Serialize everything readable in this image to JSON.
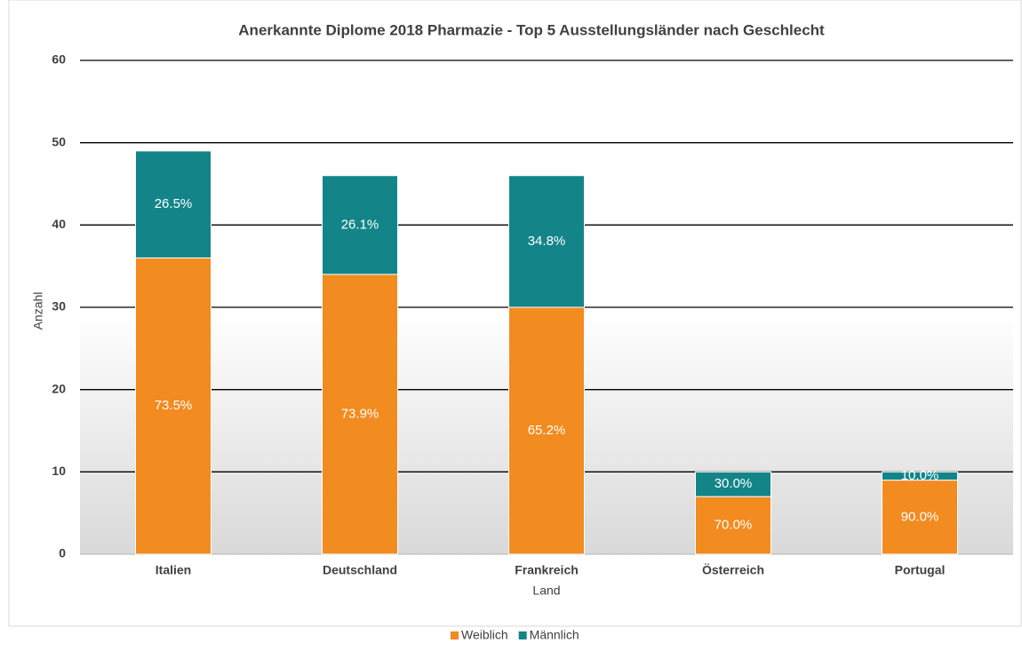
{
  "chart_data": {
    "type": "stacked_bar",
    "title": "Anerkannte Diplome 2018 Pharmazie - Top 5 Ausstellungsländer nach Geschlecht",
    "x_label": "Land",
    "y_label": "Anzahl",
    "categories": [
      "Italien",
      "Deutschland",
      "Frankreich",
      "Österreich",
      "Portugal"
    ],
    "series": [
      {
        "name": "Weiblich",
        "color": "#f28b20",
        "values": [
          36,
          34,
          30,
          7,
          9
        ],
        "value_labels": [
          "73.5%",
          "73.9%",
          "65.2%",
          "70.0%",
          "90.0%"
        ]
      },
      {
        "name": "Männlich",
        "color": "#138589",
        "values": [
          13,
          12,
          16,
          3,
          1
        ],
        "value_labels": [
          "26.5%",
          "26.1%",
          "34.8%",
          "30.0%",
          "10.0%"
        ]
      }
    ],
    "ylim": [
      0,
      60
    ],
    "yticks": [
      0,
      10,
      20,
      30,
      40,
      50,
      60
    ],
    "grid": true,
    "legend": "bottom"
  }
}
